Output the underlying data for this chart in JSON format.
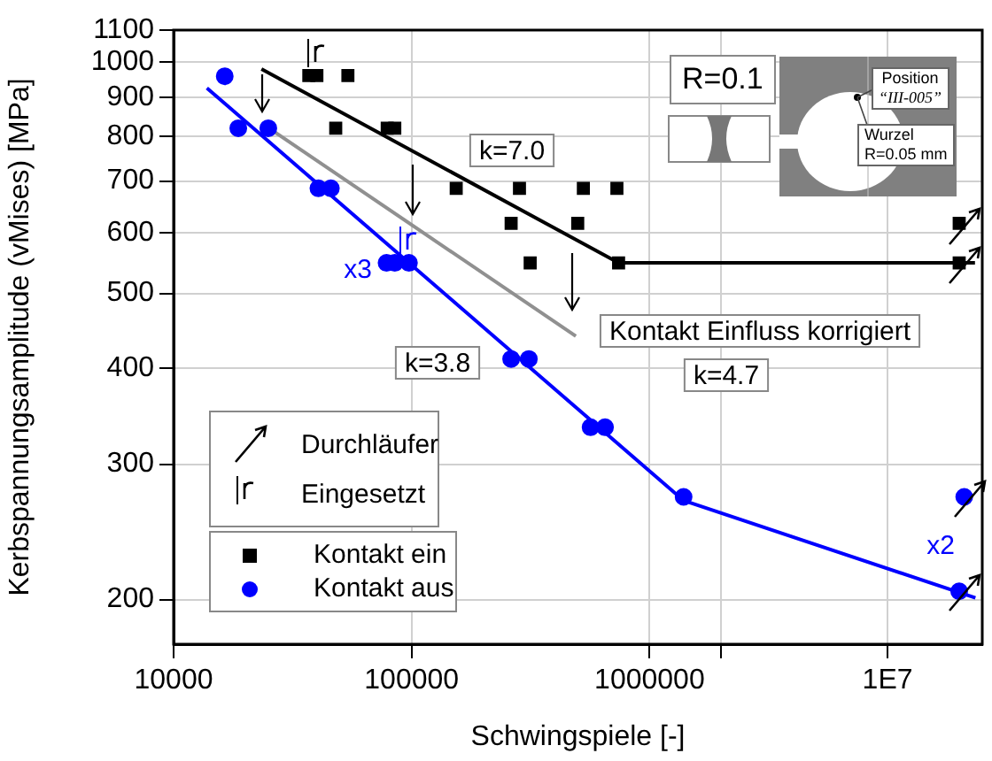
{
  "chart_data": {
    "type": "scatter",
    "xlabel": "Schwingspiele [-]",
    "ylabel": "Kerbspannungsamplitude (vMises) [MPa]",
    "log": "xy",
    "grid": true,
    "legend": "bottom left",
    "xlim": [
      10000,
      25000000
    ],
    "xticks": [
      10000,
      100000,
      1000000,
      {
        "value": 2000000,
        "label": null
      },
      {
        "value": 10000000,
        "label": "1E7"
      }
    ],
    "ylim": [
      175,
      1100
    ],
    "yticks": [
      200,
      300,
      400,
      500,
      600,
      700,
      800,
      900,
      1000,
      1100
    ],
    "series": [
      {
        "name": "Kontakt ein",
        "marker": "square",
        "color": "#000000",
        "x": [
          37000,
          40000,
          54000,
          48000,
          79000,
          85000,
          154000,
          284000,
          527000,
          729000,
          262000,
          499000,
          315000,
          741000,
          20000000,
          20000000
        ],
        "values": [
          960,
          960,
          960,
          820,
          820,
          820,
          685,
          685,
          685,
          685,
          617,
          617,
          548,
          548,
          617,
          548
        ]
      },
      {
        "name": "Kontakt aus",
        "marker": "circle",
        "color": "#0000ff",
        "x": [
          16400,
          18700,
          25000,
          40600,
          45800,
          78500,
          85000,
          97500,
          262000,
          311000,
          565000,
          650000,
          1390000,
          21000000,
          20000000
        ],
        "values": [
          958,
          820,
          820,
          685,
          685,
          548,
          548,
          548,
          411,
          411,
          335,
          335,
          272,
          272,
          205
        ]
      },
      {
        "type": "line",
        "marker": "none",
        "color": "#000000",
        "x": [
          23400,
          741000,
          23300000
        ],
        "values": [
          979,
          548,
          548
        ]
      },
      {
        "type": "line",
        "marker": "none",
        "color": "#909090",
        "x": [
          25500,
          490000
        ],
        "values": [
          818,
          440
        ]
      },
      {
        "type": "line",
        "marker": "none",
        "color": "#0000ff",
        "x": [
          13800,
          1390000,
          23400000
        ],
        "values": [
          925,
          269,
          201
        ]
      }
    ],
    "annotations": [
      "k=7.0",
      "k=3.8",
      "k=4.7",
      "Kontakt Einfluss korrigiert",
      "x3",
      "x2",
      "R=0.1",
      "Position",
      "“III-005”",
      "Wurzel",
      "R=0.05 mm",
      "Durchläufer",
      "Eingesetzt"
    ]
  }
}
